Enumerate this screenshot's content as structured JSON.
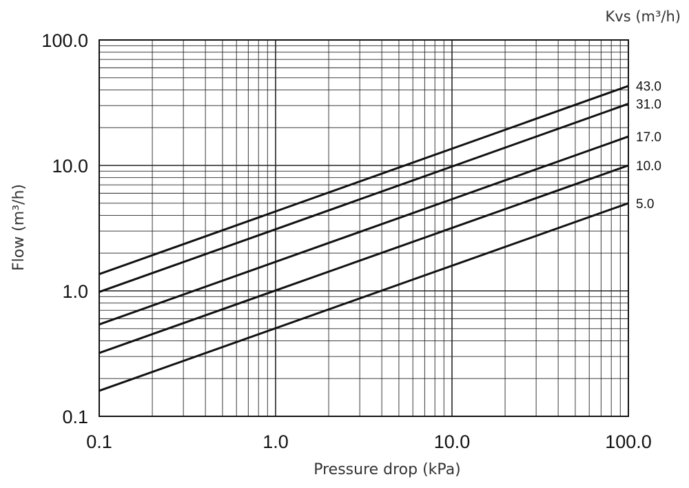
{
  "chart_data": {
    "type": "line",
    "x_scale": "log",
    "y_scale": "log",
    "xlim": [
      0.1,
      100.0
    ],
    "ylim": [
      0.1,
      100.0
    ],
    "xlabel": "Pressure drop (kPa)",
    "ylabel": "Flow (m³/h)",
    "legend_title": "Kvs (m³/h)",
    "grid": true,
    "x_tick_labels": [
      "0.1",
      "1.0",
      "10.0",
      "100.0"
    ],
    "y_tick_labels": [
      "0.1",
      "1.0",
      "10.0",
      "100.0"
    ],
    "x_tick_values": [
      0.1,
      1.0,
      10.0,
      100.0
    ],
    "y_tick_values": [
      0.1,
      1.0,
      10.0,
      100.0
    ],
    "series": [
      {
        "name": "43.0",
        "x": [
          0.1,
          100.0
        ],
        "y": [
          1.36,
          43.0
        ]
      },
      {
        "name": "31.0",
        "x": [
          0.1,
          100.0
        ],
        "y": [
          0.98,
          31.0
        ]
      },
      {
        "name": "17.0",
        "x": [
          0.1,
          100.0
        ],
        "y": [
          0.54,
          17.0
        ]
      },
      {
        "name": "10.0",
        "x": [
          0.1,
          100.0
        ],
        "y": [
          0.32,
          10.0
        ]
      },
      {
        "name": "5.0",
        "x": [
          0.1,
          100.0
        ],
        "y": [
          0.16,
          5.0
        ]
      }
    ],
    "line_color": "#111111",
    "grid_color": "#222222"
  }
}
